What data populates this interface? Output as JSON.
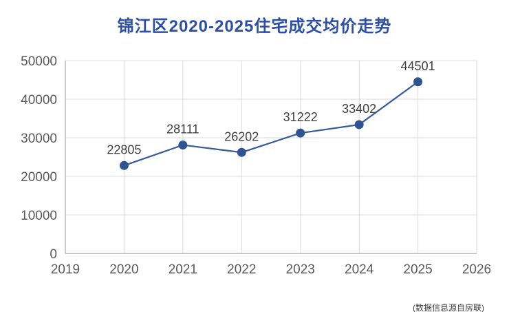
{
  "title": "锦江区2020-2025住宅成交均价走势",
  "footnote": "(数据信息源自房联)",
  "chart_data": {
    "type": "line",
    "title": "锦江区2020-2025住宅成交均价走势",
    "x": [
      2020,
      2021,
      2022,
      2023,
      2024,
      2025
    ],
    "values": [
      22805,
      28111,
      26202,
      31222,
      33402,
      44501
    ],
    "data_labels": [
      "22805",
      "28111",
      "26202",
      "31222",
      "33402",
      "44501"
    ],
    "xlabel": "",
    "ylabel": "",
    "xlim": [
      2019,
      2026
    ],
    "ylim": [
      0,
      50000
    ],
    "x_ticks": [
      2019,
      2020,
      2021,
      2022,
      2023,
      2024,
      2025,
      2026
    ],
    "y_ticks": [
      0,
      10000,
      20000,
      30000,
      40000,
      50000
    ],
    "grid": true,
    "legend": false,
    "colors": {
      "title": "#2b4fa8",
      "line": "#35599d",
      "marker": "#2e5493",
      "gridline": "#d9d9d9",
      "axis_line": "#a6a6a6",
      "tick_label": "#595959",
      "data_label": "#3f3f3f"
    }
  }
}
